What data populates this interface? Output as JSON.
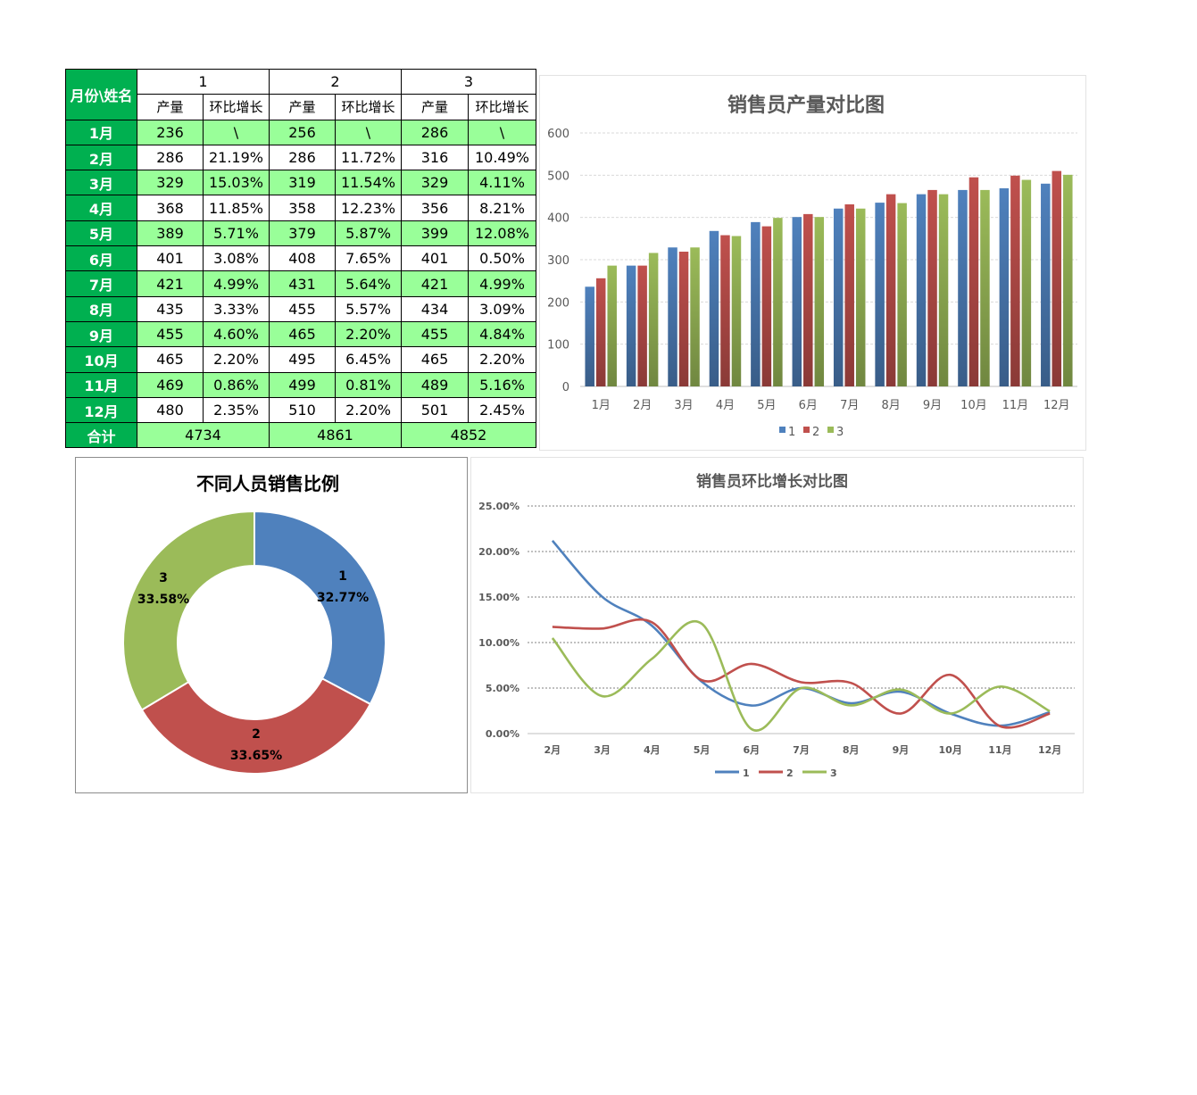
{
  "table": {
    "corner_label": "月份\\姓名",
    "persons": [
      "1",
      "2",
      "3"
    ],
    "sub_headers": [
      "产量",
      "环比增长"
    ],
    "rows": [
      {
        "month": "1月",
        "cells": [
          "236",
          "\\",
          "256",
          "\\",
          "286",
          "\\"
        ]
      },
      {
        "month": "2月",
        "cells": [
          "286",
          "21.19%",
          "286",
          "11.72%",
          "316",
          "10.49%"
        ]
      },
      {
        "month": "3月",
        "cells": [
          "329",
          "15.03%",
          "319",
          "11.54%",
          "329",
          "4.11%"
        ]
      },
      {
        "month": "4月",
        "cells": [
          "368",
          "11.85%",
          "358",
          "12.23%",
          "356",
          "8.21%"
        ]
      },
      {
        "month": "5月",
        "cells": [
          "389",
          "5.71%",
          "379",
          "5.87%",
          "399",
          "12.08%"
        ]
      },
      {
        "month": "6月",
        "cells": [
          "401",
          "3.08%",
          "408",
          "7.65%",
          "401",
          "0.50%"
        ]
      },
      {
        "month": "7月",
        "cells": [
          "421",
          "4.99%",
          "431",
          "5.64%",
          "421",
          "4.99%"
        ]
      },
      {
        "month": "8月",
        "cells": [
          "435",
          "3.33%",
          "455",
          "5.57%",
          "434",
          "3.09%"
        ]
      },
      {
        "month": "9月",
        "cells": [
          "455",
          "4.60%",
          "465",
          "2.20%",
          "455",
          "4.84%"
        ]
      },
      {
        "month": "10月",
        "cells": [
          "465",
          "2.20%",
          "495",
          "6.45%",
          "465",
          "2.20%"
        ]
      },
      {
        "month": "11月",
        "cells": [
          "469",
          "0.86%",
          "499",
          "0.81%",
          "489",
          "5.16%"
        ]
      },
      {
        "month": "12月",
        "cells": [
          "480",
          "2.35%",
          "510",
          "2.20%",
          "501",
          "2.45%"
        ]
      }
    ],
    "total_label": "合计",
    "totals": [
      "4734",
      "4861",
      "4852"
    ]
  },
  "colors": {
    "header_bg": "#00b050",
    "row_highlight": "#99ff99",
    "series_1": "#4f81bd",
    "series_2": "#c0504d",
    "series_3": "#9bbb59"
  },
  "chart_data": [
    {
      "type": "bar",
      "title": "销售员产量对比图",
      "categories": [
        "1月",
        "2月",
        "3月",
        "4月",
        "5月",
        "6月",
        "7月",
        "8月",
        "9月",
        "10月",
        "11月",
        "12月"
      ],
      "series": [
        {
          "name": "1",
          "values": [
            236,
            286,
            329,
            368,
            389,
            401,
            421,
            435,
            455,
            465,
            469,
            480
          ]
        },
        {
          "name": "2",
          "values": [
            256,
            286,
            319,
            358,
            379,
            408,
            431,
            455,
            465,
            495,
            499,
            510
          ]
        },
        {
          "name": "3",
          "values": [
            286,
            316,
            329,
            356,
            399,
            401,
            421,
            434,
            455,
            465,
            489,
            501
          ]
        }
      ],
      "ylim": [
        0,
        600
      ],
      "yticks": [
        0,
        100,
        200,
        300,
        400,
        500,
        600
      ],
      "grid": true,
      "legend": "bottom"
    },
    {
      "type": "pie",
      "variant": "donut",
      "title": "不同人员销售比例",
      "labels": [
        "1",
        "2",
        "3"
      ],
      "values": [
        4734,
        4861,
        4852
      ],
      "percent_labels": [
        "32.77%",
        "33.65%",
        "33.58%"
      ]
    },
    {
      "type": "line",
      "title": "销售员环比增长对比图",
      "categories": [
        "2月",
        "3月",
        "4月",
        "5月",
        "6月",
        "7月",
        "8月",
        "9月",
        "10月",
        "11月",
        "12月"
      ],
      "series": [
        {
          "name": "1",
          "values": [
            21.19,
            15.03,
            11.85,
            5.71,
            3.08,
            4.99,
            3.33,
            4.6,
            2.2,
            0.86,
            2.35
          ]
        },
        {
          "name": "2",
          "values": [
            11.72,
            11.54,
            12.23,
            5.87,
            7.65,
            5.64,
            5.57,
            2.2,
            6.45,
            0.81,
            2.2
          ]
        },
        {
          "name": "3",
          "values": [
            10.49,
            4.11,
            8.21,
            12.08,
            0.5,
            4.99,
            3.09,
            4.84,
            2.2,
            5.16,
            2.45
          ]
        }
      ],
      "ylim": [
        0,
        25
      ],
      "ytick_labels": [
        "0.00%",
        "5.00%",
        "10.00%",
        "15.00%",
        "20.00%",
        "25.00%"
      ],
      "smooth": true,
      "grid": true,
      "legend": "bottom"
    }
  ]
}
